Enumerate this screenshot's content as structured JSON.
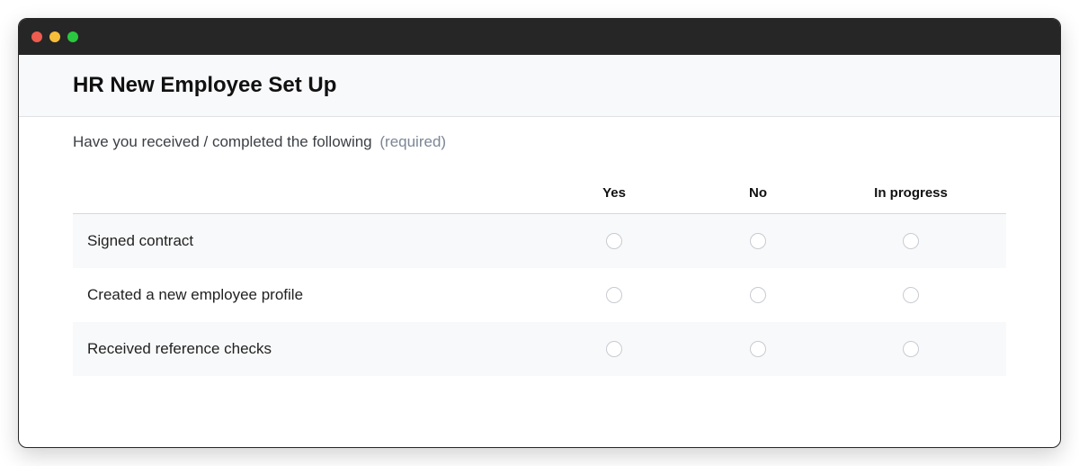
{
  "colors": {
    "titlebar": "#262626",
    "header_bg": "#f8f9fa",
    "header_border": "#e0e2e5",
    "alt_row_bg": "#f8f9fa",
    "radio_border": "#c7cbd1",
    "text_primary": "#111111",
    "text_body": "#3b3f45",
    "text_muted": "#7b8694",
    "traffic_red": "#ed5c4e",
    "traffic_yellow": "#f6bd3b",
    "traffic_green": "#29c840"
  },
  "typography": {
    "title_fontsize": 24,
    "title_weight": 800,
    "body_fontsize": 17,
    "header_col_fontsize": 15
  },
  "header": {
    "title": "HR New Employee Set Up"
  },
  "question": {
    "text": "Have you received / completed the following",
    "required_label": "(required)"
  },
  "matrix": {
    "type": "radio-matrix",
    "columns": [
      "Yes",
      "No",
      "In progress"
    ],
    "rows": [
      {
        "label": "Signed contract",
        "alt": true
      },
      {
        "label": "Created a new employee profile",
        "alt": false
      },
      {
        "label": "Received reference checks",
        "alt": true
      }
    ]
  }
}
